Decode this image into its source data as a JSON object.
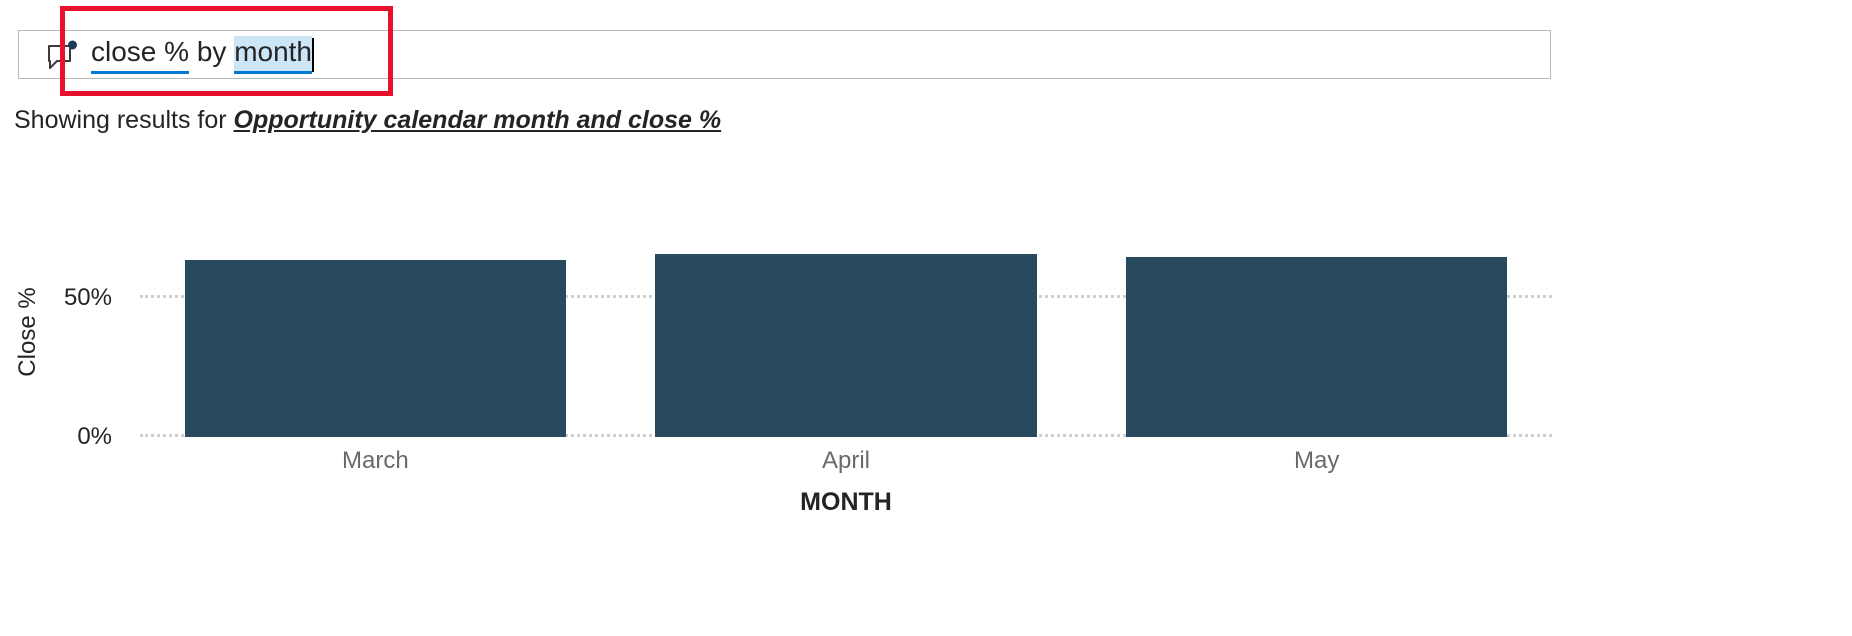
{
  "qna_bar": {
    "query_parts": [
      {
        "text": "close %",
        "recognized": true,
        "selected": false
      },
      {
        "text": " by ",
        "recognized": false,
        "selected": false
      },
      {
        "text": "month",
        "recognized": true,
        "selected": true
      }
    ]
  },
  "results_line": {
    "prefix": "Showing results for ",
    "interpretation": "Opportunity calendar month and close %"
  },
  "chart_data": {
    "type": "bar",
    "categories": [
      "March",
      "April",
      "May"
    ],
    "values": [
      64,
      66,
      65
    ],
    "title": "",
    "xlabel": "MONTH",
    "ylabel": "Close %",
    "ylim": [
      0,
      75
    ],
    "yticks": [
      {
        "label": "0%",
        "value": 0
      },
      {
        "label": "50%",
        "value": 50
      }
    ],
    "grid": "dotted horizontal",
    "legend": "none",
    "bar_color": "#284A5F"
  },
  "colors": {
    "accent_blue": "#0078d4",
    "selection_bg": "#CDE6F7",
    "annotation_red": "#E8112D",
    "bar": "#284A5F",
    "grid": "#CFCFCF",
    "text": "#252423",
    "category_text": "#6A6A6A"
  }
}
